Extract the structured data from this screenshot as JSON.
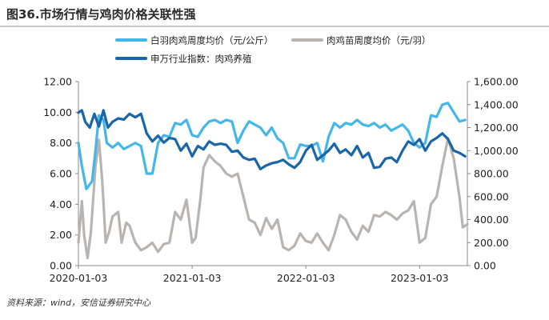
{
  "title": "图36.市场行情与鸡肉价格关联性强",
  "source": "资料来源：wind，安信证券研究中心",
  "colors": {
    "broiler_price": "#45b6e9",
    "chick_price": "#b9b4b0",
    "index": "#1a64a8"
  },
  "chart_data": {
    "type": "line",
    "x_tick_labels": [
      "2020-01-03",
      "2021-01-03",
      "2022-01-03",
      "2023-01-03"
    ],
    "x_tick_positions": [
      0,
      1,
      2,
      3
    ],
    "x_range": [
      0,
      3.42
    ],
    "y_left": {
      "ylim": [
        0,
        12
      ],
      "tick_values": [
        0,
        2,
        4,
        6,
        8,
        10,
        12
      ],
      "tick_labels": [
        "0.00",
        "2.00",
        "4.00",
        "6.00",
        "8.00",
        "10.00",
        "12.00"
      ]
    },
    "y_right": {
      "ylim": [
        0,
        1600
      ],
      "tick_values": [
        0,
        200,
        400,
        600,
        800,
        1000,
        1200,
        1400,
        1600
      ],
      "tick_labels": [
        "0.00",
        "200.00",
        "400.00",
        "600.00",
        "800.00",
        "1,000.00",
        "1,200.00",
        "1,400.00",
        "1,600.00"
      ]
    },
    "series": [
      {
        "name": "白羽肉鸡周度均价（元/公斤）",
        "axis": "left",
        "color_key": "broiler_price",
        "x": [
          0.0,
          0.03,
          0.07,
          0.12,
          0.15,
          0.18,
          0.22,
          0.25,
          0.3,
          0.35,
          0.4,
          0.45,
          0.5,
          0.55,
          0.6,
          0.65,
          0.7,
          0.75,
          0.8,
          0.85,
          0.9,
          0.95,
          1.0,
          1.05,
          1.1,
          1.15,
          1.2,
          1.25,
          1.3,
          1.35,
          1.4,
          1.45,
          1.5,
          1.55,
          1.6,
          1.65,
          1.7,
          1.75,
          1.8,
          1.85,
          1.9,
          1.95,
          2.0,
          2.05,
          2.1,
          2.15,
          2.2,
          2.25,
          2.3,
          2.35,
          2.4,
          2.45,
          2.5,
          2.55,
          2.6,
          2.65,
          2.7,
          2.75,
          2.8,
          2.85,
          2.9,
          2.95,
          3.0,
          3.05,
          3.1,
          3.15,
          3.2,
          3.25,
          3.3,
          3.35,
          3.4
        ],
        "y": [
          8.0,
          6.5,
          5.0,
          5.5,
          7.5,
          9.8,
          9.5,
          8.0,
          7.7,
          8.0,
          7.6,
          7.8,
          8.0,
          7.8,
          6.0,
          6.0,
          8.0,
          8.5,
          8.4,
          9.3,
          9.2,
          9.5,
          8.5,
          8.4,
          9.0,
          9.4,
          9.5,
          9.3,
          9.5,
          9.4,
          8.0,
          8.8,
          9.4,
          9.2,
          9.0,
          8.5,
          9.0,
          8.3,
          8.0,
          7.0,
          7.0,
          7.9,
          7.8,
          7.8,
          8.0,
          6.8,
          8.4,
          9.3,
          9.0,
          9.3,
          9.2,
          9.5,
          9.2,
          9.1,
          9.3,
          9.0,
          9.2,
          8.8,
          9.0,
          9.2,
          8.8,
          8.0,
          7.7,
          8.0,
          9.8,
          9.7,
          10.5,
          10.6,
          10.0,
          9.4,
          9.5
        ]
      },
      {
        "name": "肉鸡苗周度均价（元/羽）",
        "axis": "left",
        "color_key": "chick_price",
        "x": [
          0.0,
          0.03,
          0.05,
          0.08,
          0.11,
          0.15,
          0.18,
          0.21,
          0.24,
          0.27,
          0.3,
          0.35,
          0.38,
          0.42,
          0.45,
          0.5,
          0.55,
          0.6,
          0.65,
          0.7,
          0.75,
          0.8,
          0.85,
          0.9,
          0.95,
          1.0,
          1.03,
          1.07,
          1.1,
          1.15,
          1.2,
          1.25,
          1.3,
          1.35,
          1.4,
          1.45,
          1.5,
          1.55,
          1.6,
          1.65,
          1.7,
          1.75,
          1.8,
          1.85,
          1.9,
          1.95,
          2.0,
          2.05,
          2.1,
          2.15,
          2.2,
          2.25,
          2.3,
          2.35,
          2.4,
          2.45,
          2.5,
          2.55,
          2.6,
          2.65,
          2.7,
          2.75,
          2.8,
          2.85,
          2.9,
          2.95,
          3.0,
          3.05,
          3.1,
          3.15,
          3.2,
          3.25,
          3.3,
          3.35,
          3.38,
          3.42
        ],
        "y": [
          1.5,
          4.2,
          2.0,
          0.5,
          2.2,
          6.5,
          8.2,
          5.5,
          1.5,
          2.2,
          3.2,
          3.5,
          1.5,
          2.8,
          2.6,
          1.5,
          1.0,
          1.2,
          1.5,
          0.9,
          1.4,
          1.5,
          3.5,
          3.0,
          4.3,
          1.5,
          1.8,
          4.2,
          6.4,
          7.2,
          6.8,
          6.5,
          6.0,
          5.8,
          6.0,
          4.5,
          3.0,
          2.8,
          2.0,
          3.1,
          2.4,
          3.0,
          1.2,
          1.0,
          1.3,
          2.1,
          1.6,
          1.5,
          2.1,
          1.5,
          1.0,
          2.0,
          3.3,
          3.0,
          2.2,
          1.7,
          2.6,
          2.2,
          3.3,
          3.2,
          3.5,
          3.3,
          3.0,
          3.4,
          3.6,
          4.2,
          1.5,
          1.8,
          4.0,
          4.5,
          6.5,
          8.3,
          7.0,
          4.5,
          2.5,
          2.7
        ]
      },
      {
        "name": "申万行业指数：肉鸡养殖",
        "axis": "right",
        "color_key": "index",
        "x": [
          0.0,
          0.03,
          0.06,
          0.1,
          0.14,
          0.18,
          0.22,
          0.26,
          0.3,
          0.35,
          0.4,
          0.45,
          0.5,
          0.55,
          0.6,
          0.65,
          0.7,
          0.75,
          0.8,
          0.85,
          0.9,
          0.95,
          1.0,
          1.05,
          1.1,
          1.15,
          1.2,
          1.25,
          1.3,
          1.35,
          1.4,
          1.45,
          1.5,
          1.55,
          1.6,
          1.65,
          1.7,
          1.75,
          1.8,
          1.85,
          1.9,
          1.95,
          2.0,
          2.05,
          2.1,
          2.15,
          2.2,
          2.25,
          2.3,
          2.35,
          2.4,
          2.45,
          2.5,
          2.55,
          2.6,
          2.65,
          2.7,
          2.75,
          2.8,
          2.85,
          2.9,
          2.95,
          3.0,
          3.05,
          3.1,
          3.15,
          3.2,
          3.25,
          3.3,
          3.35,
          3.4
        ],
        "y": [
          1330,
          1350,
          1250,
          1200,
          1320,
          1210,
          1350,
          1200,
          1250,
          1280,
          1270,
          1320,
          1290,
          1320,
          1150,
          1080,
          1130,
          1070,
          1110,
          1100,
          1000,
          1060,
          950,
          1040,
          1010,
          1080,
          1050,
          1060,
          1050,
          990,
          1000,
          940,
          920,
          930,
          840,
          870,
          890,
          900,
          920,
          880,
          850,
          900,
          1000,
          1050,
          920,
          960,
          1000,
          1060,
          980,
          1010,
          960,
          1040,
          940,
          980,
          850,
          860,
          930,
          940,
          900,
          1000,
          1080,
          1050,
          1100,
          1000,
          1080,
          1110,
          1150,
          1100,
          1000,
          980,
          950
        ]
      }
    ]
  }
}
